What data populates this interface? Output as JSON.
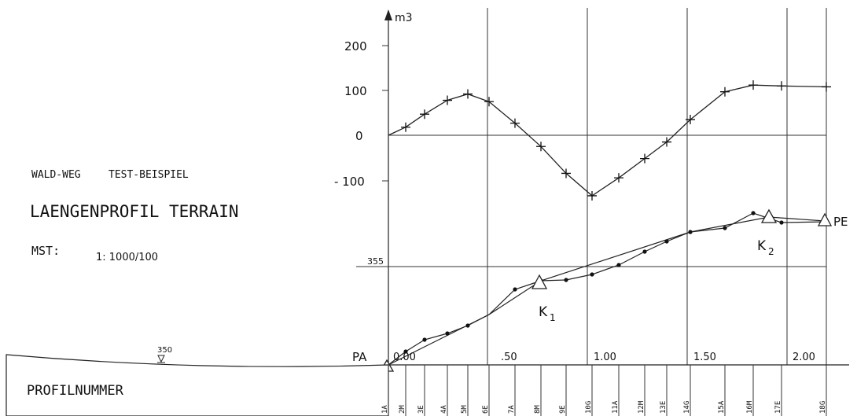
{
  "header": {
    "line1_left": "WALD-WEG",
    "line1_right": "TEST-BEISPIEL",
    "title": "LAENGENPROFIL  TERRAIN",
    "scale_label": "MST:",
    "scale_value": "1: 1000/100"
  },
  "profile_box": {
    "label": "PROFILNUMMER",
    "marker_value": "350"
  },
  "upper_chart": {
    "unit": "m3",
    "ticks": [
      "200",
      "100",
      "0",
      "- 100"
    ]
  },
  "lower_chart": {
    "level_label": "355",
    "start_label": "PA",
    "end_label": "PE",
    "k1_label": "K",
    "k1_sub": "1",
    "k2_label": "K",
    "k2_sub": "2"
  },
  "distance_labels": [
    "0.00",
    ".50",
    "1.00",
    "1.50",
    "2.00"
  ],
  "profile_ids": [
    "1A",
    "2M",
    "3E",
    "4A",
    "5M",
    "6E",
    "7A",
    "8M",
    "9E",
    "10G",
    "11A",
    "12M",
    "13E",
    "14G",
    "15A",
    "16M",
    "17E",
    "18G"
  ],
  "chart_data": {
    "type": "line",
    "series": [
      {
        "values_m3": [
          0,
          18,
          47,
          78,
          92,
          75,
          27,
          -25,
          -85,
          -135,
          -95,
          -52,
          -15,
          35,
          97,
          112,
          110,
          108
        ]
      }
    ]
  }
}
